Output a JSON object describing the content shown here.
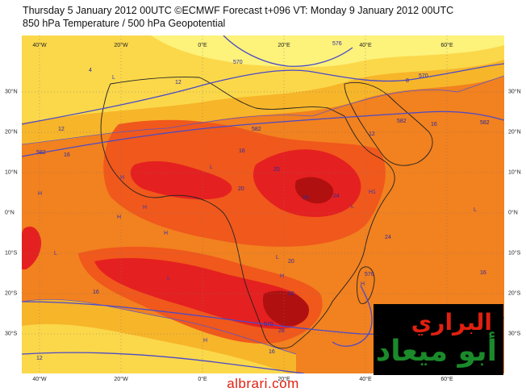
{
  "header": {
    "line1": "Thursday 5 January 2012 00UTC ©ECMWF Forecast t+096 VT: Monday 9 January 2012 00UTC",
    "line2": "850 hPa Temperature / 500 hPa Geopotential"
  },
  "axes": {
    "longitude_ticks": [
      "40°W",
      "20°W",
      "0°E",
      "20°E",
      "40°E",
      "60°E"
    ],
    "latitude_ticks": [
      "30°N",
      "20°N",
      "10°N",
      "0°N",
      "10°S",
      "20°S",
      "30°S"
    ]
  },
  "contour_labels": {
    "geopotential": [
      "570",
      "576",
      "570",
      "582",
      "582",
      "582",
      "582",
      "576",
      "570"
    ],
    "temperature": [
      "4",
      "8",
      "12",
      "12",
      "16",
      "16",
      "20",
      "20",
      "24",
      "24",
      "28",
      "28",
      "16",
      "12",
      "16",
      "16",
      "12",
      "24",
      "20",
      "16"
    ],
    "pressure_centers": [
      "H",
      "H",
      "H",
      "H",
      "H",
      "H",
      "H",
      "H",
      "L",
      "L",
      "L",
      "L",
      "L",
      "L",
      "L",
      "H1"
    ]
  },
  "colors": {
    "ocean_temp": "#f07a1c",
    "cool": "#fde95a",
    "warm": "#f0581c",
    "hot": "#e52020",
    "hottest": "#b01010",
    "contour": "#4a4ac8",
    "coast": "#222222"
  },
  "logo": {
    "line1": "البراري",
    "line2": "أبو ميعاد"
  },
  "footer": {
    "site": "albrari.com"
  }
}
